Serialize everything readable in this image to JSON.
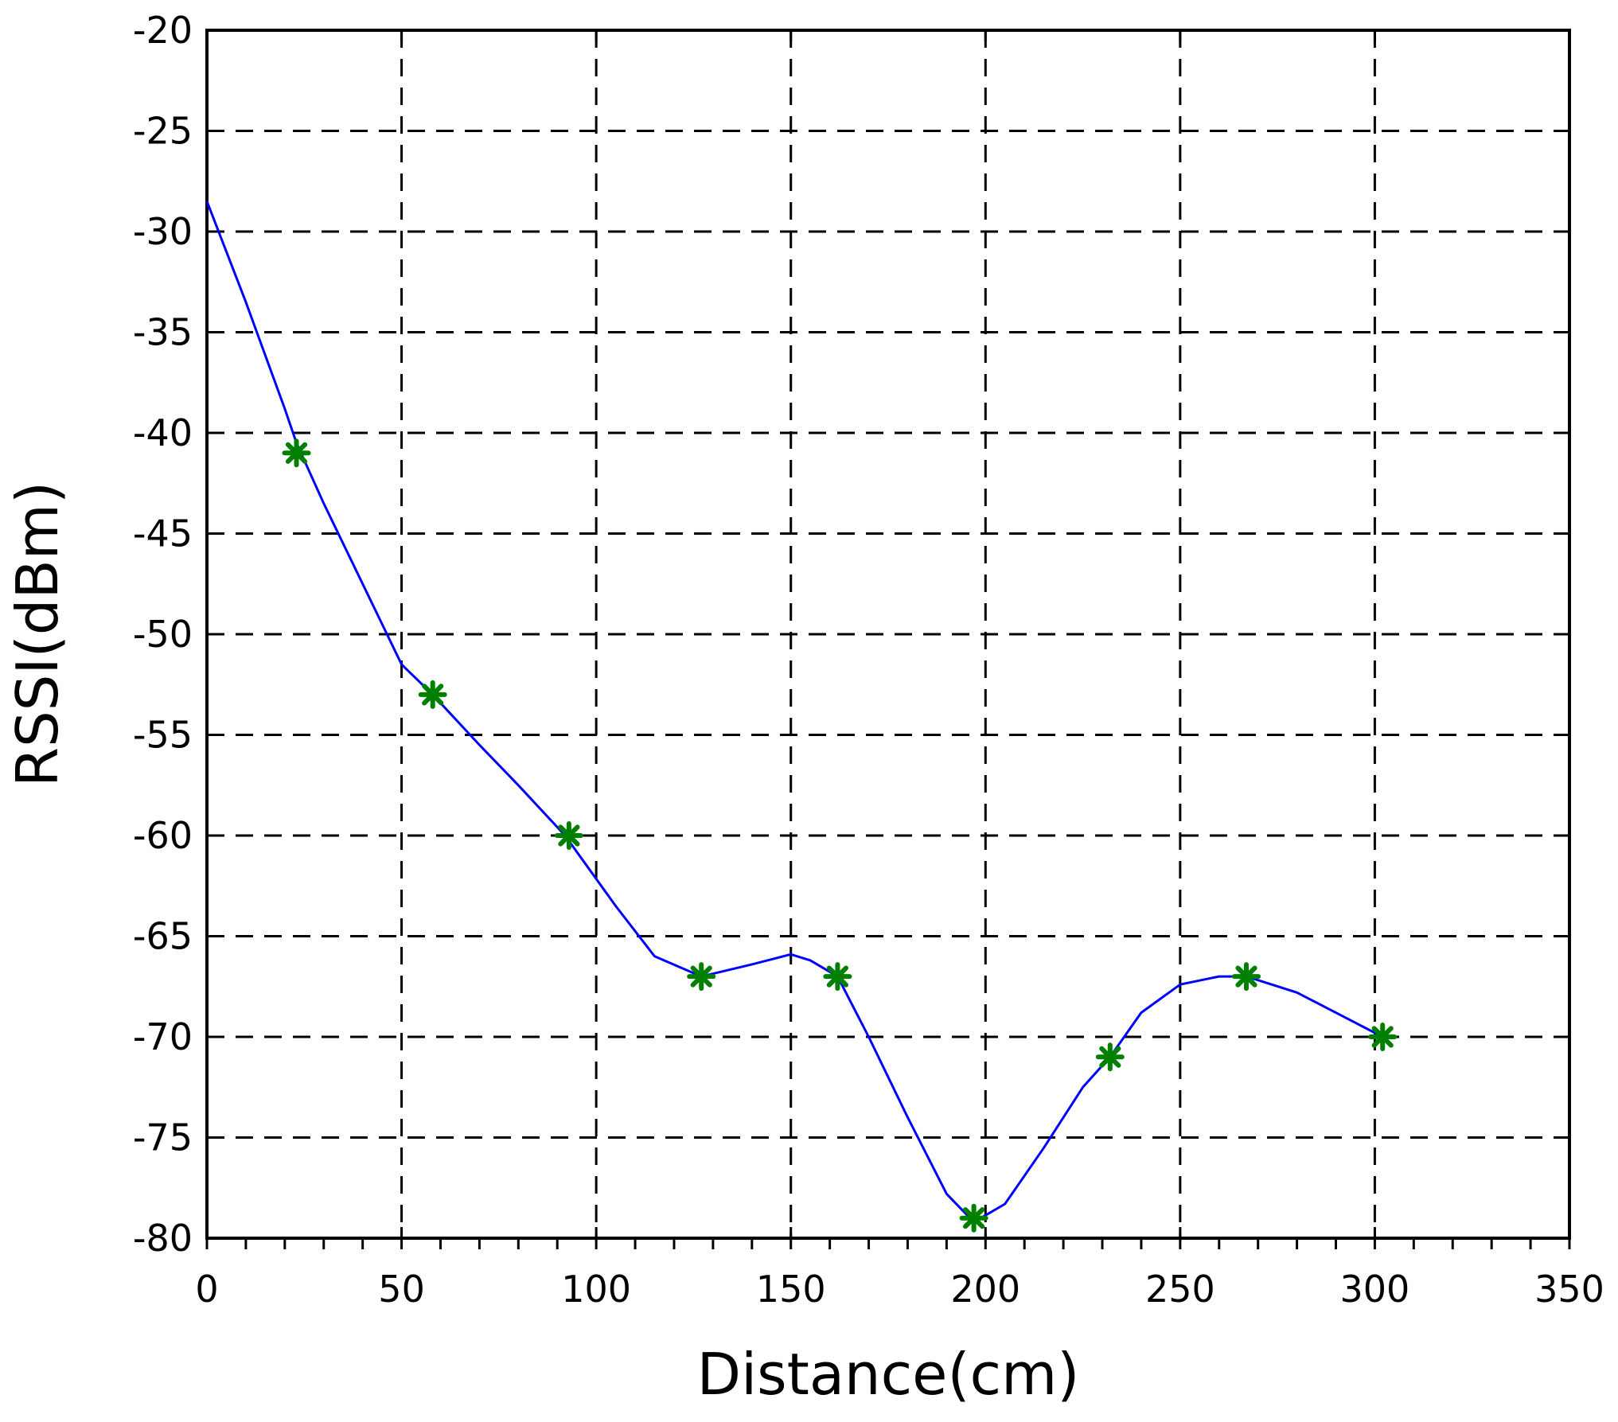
{
  "chart_data": {
    "type": "line",
    "title": "",
    "xlabel": "Distance(cm)",
    "ylabel": "RSSI(dBm)",
    "xlim": [
      0,
      350
    ],
    "ylim": [
      -80,
      -20
    ],
    "grid": true,
    "x_ticks": [
      0,
      50,
      100,
      150,
      200,
      250,
      300,
      350
    ],
    "y_ticks": [
      -20,
      -25,
      -30,
      -35,
      -40,
      -45,
      -50,
      -55,
      -60,
      -65,
      -70,
      -75,
      -80
    ],
    "x_tick_labels": [
      "0",
      "50",
      "100",
      "150",
      "200",
      "250",
      "300",
      "350"
    ],
    "y_tick_labels": [
      "-20",
      "-25",
      "-30",
      "-35",
      "-40",
      "-45",
      "-50",
      "-55",
      "-60",
      "-65",
      "-70",
      "-75",
      "-80"
    ],
    "series": [
      {
        "style": "line",
        "color": "#0000ff",
        "x": [
          0,
          10,
          20,
          23,
          30,
          40,
          50,
          58,
          70,
          80,
          92,
          105,
          115,
          127,
          140,
          150,
          155,
          162,
          170,
          180,
          190,
          197,
          205,
          215,
          225,
          232,
          240,
          250,
          260,
          267,
          280,
          290,
          302
        ],
        "y": [
          -28.5,
          -33.5,
          -38.8,
          -40.5,
          -43.5,
          -47.5,
          -51.5,
          -53,
          -55.5,
          -57.5,
          -60,
          -63.5,
          -66,
          -67,
          -66.4,
          -65.9,
          -66.2,
          -67,
          -70,
          -74,
          -77.8,
          -79.2,
          -78.3,
          -75.5,
          -72.5,
          -71,
          -68.8,
          -67.4,
          -67,
          -67,
          -67.8,
          -68.8,
          -70
        ]
      },
      {
        "style": "markers",
        "marker": "asterisk",
        "color": "#008000",
        "x": [
          23,
          58,
          93,
          127,
          162,
          197,
          232,
          267,
          302
        ],
        "y": [
          -41,
          -53,
          -60,
          -67,
          -67,
          -79,
          -71,
          -67,
          -70
        ]
      }
    ]
  }
}
